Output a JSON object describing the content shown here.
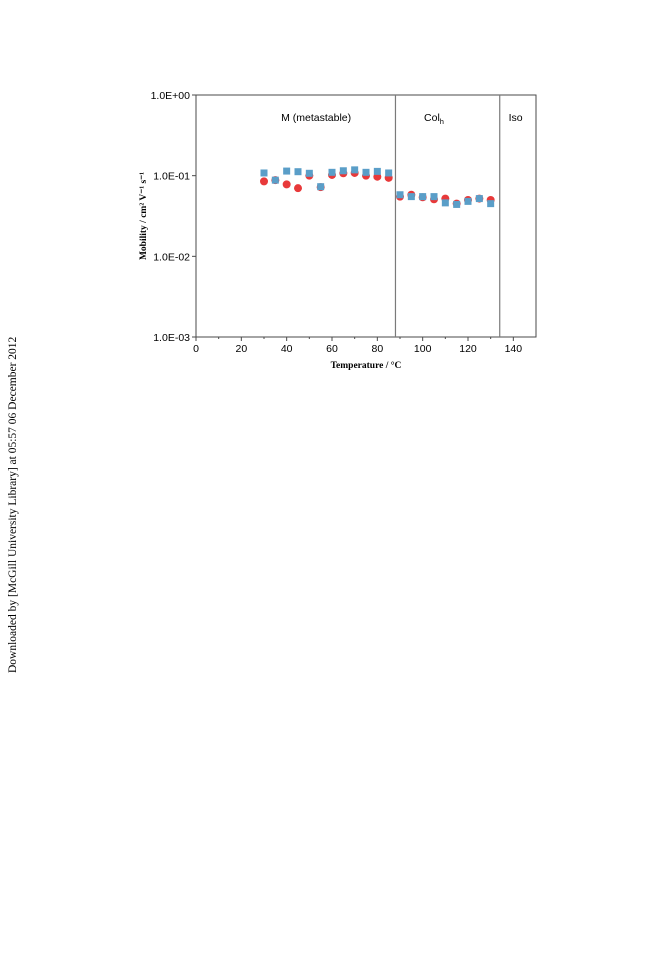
{
  "sidebar_text": "Downloaded by [McGill University Library] at 05:57 06 December 2012",
  "chart_data": {
    "type": "scatter",
    "xlabel": "Temperature / °C",
    "ylabel": "Mobility / cm² V⁻¹ s⁻¹",
    "xlim": [
      0,
      150
    ],
    "ylim_log10": [
      -3,
      0
    ],
    "y_scale": "log",
    "x_ticks": [
      "0",
      "20",
      "40",
      "60",
      "80",
      "100",
      "120",
      "140"
    ],
    "y_ticks": [
      "1.0E-03",
      "1.0E-02",
      "1.0E-01",
      "1.0E+00"
    ],
    "phase_boundaries": [
      88,
      134
    ],
    "regions": [
      {
        "label": "M (metastable)",
        "x": 53
      },
      {
        "label": "Col",
        "subscript": "h",
        "x": 105
      },
      {
        "label": "Iso",
        "x": 141
      }
    ],
    "series": [
      {
        "marker": "circle",
        "color": "#e8393a",
        "x": [
          30,
          35,
          40,
          45,
          50,
          55,
          60,
          65,
          70,
          75,
          80,
          85,
          90,
          95,
          100,
          105,
          110,
          115,
          120,
          125,
          130
        ],
        "y": [
          0.085,
          0.088,
          0.078,
          0.07,
          0.1,
          0.072,
          0.102,
          0.107,
          0.108,
          0.1,
          0.097,
          0.094,
          0.055,
          0.058,
          0.054,
          0.051,
          0.052,
          0.045,
          0.05,
          0.052,
          0.05
        ]
      },
      {
        "marker": "square",
        "color": "#5a9ec8",
        "x": [
          30,
          35,
          40,
          45,
          50,
          55,
          60,
          65,
          70,
          75,
          80,
          85,
          90,
          95,
          100,
          105,
          110,
          115,
          120,
          125,
          130
        ],
        "y": [
          0.108,
          0.088,
          0.114,
          0.112,
          0.107,
          0.073,
          0.11,
          0.115,
          0.118,
          0.11,
          0.113,
          0.108,
          0.058,
          0.055,
          0.055,
          0.055,
          0.046,
          0.044,
          0.048,
          0.052,
          0.045
        ]
      }
    ]
  }
}
